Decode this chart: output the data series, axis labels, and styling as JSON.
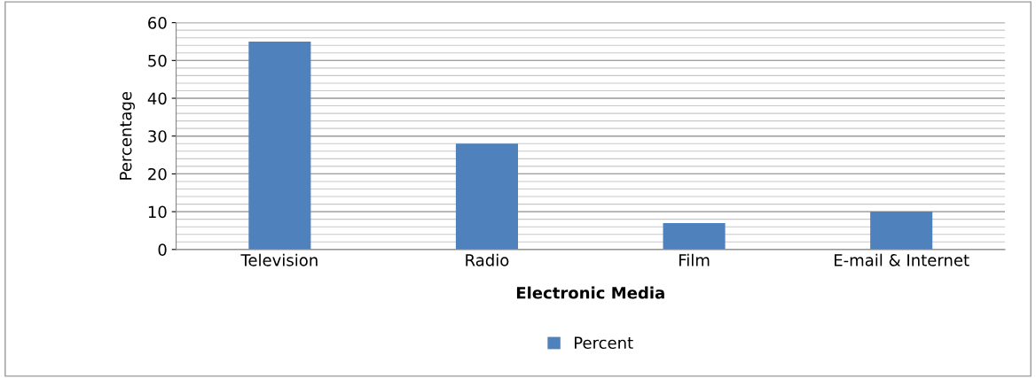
{
  "chart_data": {
    "type": "bar",
    "xlabel": "Electronic Media",
    "ylabel": "Percentage",
    "categories": [
      "Television",
      "Radio",
      "Film",
      "E-mail & Internet"
    ],
    "series": [
      {
        "name": "Percent",
        "color": "#4f81bd",
        "values": [
          55,
          28,
          7,
          10
        ]
      }
    ],
    "ylim": [
      0,
      60
    ],
    "yticks": [
      0,
      10,
      20,
      30,
      40,
      50,
      60
    ],
    "grid": "y",
    "legend": "bottom"
  }
}
